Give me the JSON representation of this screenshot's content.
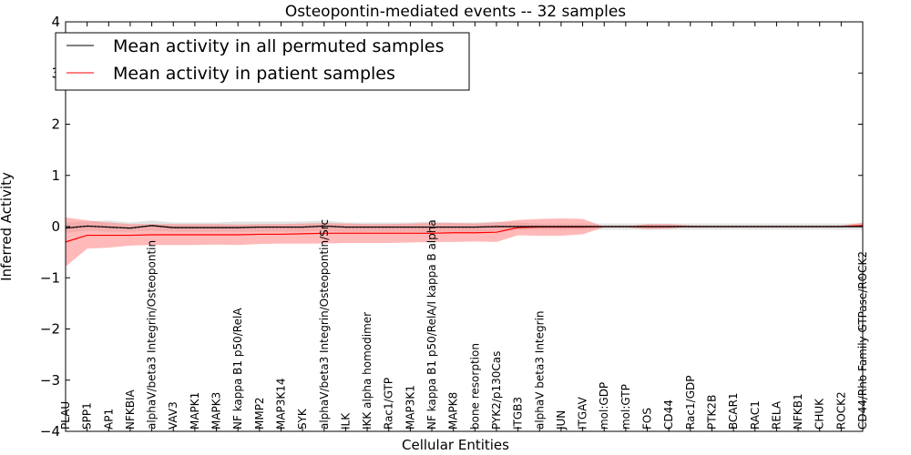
{
  "chart_data": {
    "type": "line",
    "title": "Osteopontin-mediated events -- 32 samples",
    "xlabel": "Cellular Entities",
    "ylabel": "Inferred Activity",
    "ylim": [
      -4,
      4
    ],
    "yticks": [
      -4,
      -3,
      -2,
      -1,
      0,
      1,
      2,
      3,
      4
    ],
    "ytick_labels": [
      "−4",
      "−3",
      "−2",
      "−1",
      "0",
      "1",
      "2",
      "3",
      "4"
    ],
    "grid": false,
    "legend": {
      "placement": "top-left",
      "entries": [
        {
          "label": "Mean activity in all permuted samples",
          "color": "#000000"
        },
        {
          "label": "Mean activity in patient samples",
          "color": "#ff0000"
        }
      ]
    },
    "categories": [
      "PLAU",
      "SPP1",
      "AP1",
      "NFKBIA",
      "alphaV/beta3 Integrin/Osteopontin",
      "VAV3",
      "MAPK1",
      "MAPK3",
      "NF kappa B1 p50/RelA",
      "MMP2",
      "MAP3K14",
      "SYK",
      "alphaV/beta3 Integrin/Osteopontin/Src",
      "ILK",
      "IKK alpha homodimer",
      "Rac1/GTP",
      "MAP3K1",
      "NF kappa B1 p50/RelA/I kappa B alpha",
      "MAPK8",
      "bone resorption",
      "PYK2/p130Cas",
      "ITGB3",
      "alphaV beta3 Integrin",
      "JUN",
      "ITGAV",
      "mol:GDP",
      "mol:GTP",
      "FOS",
      "CD44",
      "Rac1/GDP",
      "PTK2B",
      "BCAR1",
      "RAC1",
      "RELA",
      "NFKB1",
      "CHUK",
      "ROCK2",
      "CD44/Rho Family GTPase/ROCK2"
    ],
    "series": [
      {
        "name": "Mean activity in all permuted samples",
        "color": "#000000",
        "band_color": "#c8c8c8",
        "values": [
          -0.03,
          0.01,
          -0.01,
          -0.03,
          0.02,
          -0.02,
          -0.02,
          -0.02,
          -0.02,
          -0.01,
          -0.01,
          -0.01,
          0.01,
          -0.01,
          -0.01,
          -0.01,
          -0.01,
          -0.01,
          -0.01,
          -0.01,
          0.0,
          0.0,
          0.0,
          0.0,
          0.0,
          0.0,
          0.0,
          0.0,
          0.0,
          0.0,
          0.0,
          0.0,
          0.0,
          0.0,
          0.0,
          0.0,
          0.0,
          0.0
        ],
        "lower": [
          -0.12,
          -0.08,
          -0.1,
          -0.1,
          -0.08,
          -0.1,
          -0.1,
          -0.1,
          -0.1,
          -0.1,
          -0.1,
          -0.1,
          -0.08,
          -0.1,
          -0.1,
          -0.1,
          -0.1,
          -0.1,
          -0.1,
          -0.1,
          -0.08,
          -0.06,
          -0.06,
          -0.06,
          -0.06,
          -0.06,
          -0.06,
          -0.06,
          -0.06,
          -0.06,
          -0.06,
          -0.06,
          -0.06,
          -0.06,
          -0.06,
          -0.06,
          -0.06,
          -0.06
        ],
        "upper": [
          0.08,
          0.1,
          0.12,
          0.08,
          0.12,
          0.08,
          0.08,
          0.08,
          0.1,
          0.1,
          0.1,
          0.1,
          0.12,
          0.08,
          0.08,
          0.08,
          0.08,
          0.1,
          0.08,
          0.08,
          0.1,
          0.08,
          0.06,
          0.06,
          0.06,
          0.06,
          0.06,
          0.06,
          0.06,
          0.06,
          0.06,
          0.06,
          0.06,
          0.06,
          0.06,
          0.06,
          0.06,
          0.06
        ]
      },
      {
        "name": "Mean activity in patient samples",
        "color": "#ff0000",
        "band_color": "#ff8080",
        "values": [
          -0.3,
          -0.17,
          -0.17,
          -0.17,
          -0.16,
          -0.16,
          -0.16,
          -0.16,
          -0.16,
          -0.15,
          -0.15,
          -0.14,
          -0.13,
          -0.13,
          -0.13,
          -0.13,
          -0.13,
          -0.13,
          -0.12,
          -0.12,
          -0.11,
          -0.02,
          -0.01,
          -0.01,
          -0.01,
          0.0,
          0.0,
          0.0,
          0.0,
          0.0,
          0.0,
          0.0,
          0.0,
          0.0,
          0.0,
          0.0,
          0.0,
          0.02
        ],
        "lower": [
          -0.78,
          -0.43,
          -0.41,
          -0.37,
          -0.36,
          -0.36,
          -0.36,
          -0.35,
          -0.36,
          -0.34,
          -0.33,
          -0.33,
          -0.33,
          -0.32,
          -0.32,
          -0.32,
          -0.31,
          -0.3,
          -0.3,
          -0.29,
          -0.3,
          -0.17,
          -0.18,
          -0.18,
          -0.15,
          -0.01,
          -0.01,
          -0.05,
          -0.04,
          0.0,
          0.0,
          0.0,
          0.0,
          0.0,
          0.0,
          0.0,
          0.0,
          0.0
        ],
        "upper": [
          0.18,
          0.12,
          0.08,
          0.05,
          0.05,
          0.05,
          0.05,
          0.05,
          0.04,
          0.05,
          0.05,
          0.06,
          0.07,
          0.06,
          0.05,
          0.05,
          0.06,
          0.07,
          0.07,
          0.06,
          0.08,
          0.13,
          0.15,
          0.16,
          0.15,
          0.0,
          0.0,
          0.05,
          0.05,
          0.02,
          0.01,
          0.01,
          0.01,
          0.01,
          0.01,
          0.01,
          0.02,
          0.08
        ]
      }
    ]
  }
}
